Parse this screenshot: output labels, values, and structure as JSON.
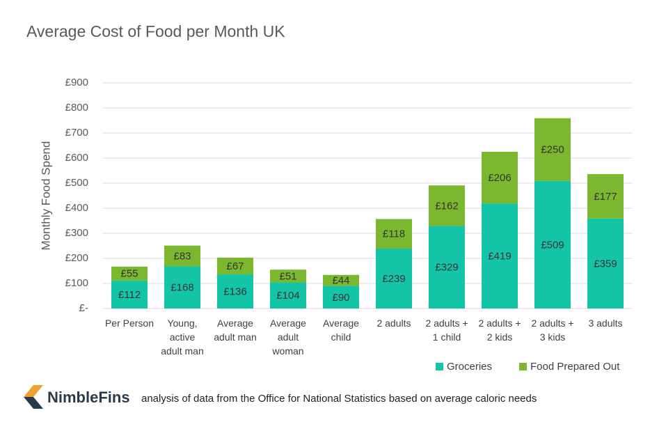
{
  "chart_data": {
    "type": "stacked-bar",
    "title": "Average Cost of Food per Month UK",
    "y_label": "Monthly Food Spend",
    "categories": [
      [
        "Per Person"
      ],
      [
        "Young,",
        "active",
        "adult man"
      ],
      [
        "Average",
        "adult man"
      ],
      [
        "Average",
        "adult",
        "woman"
      ],
      [
        "Average",
        "child"
      ],
      [
        "2 adults"
      ],
      [
        "2 adults +",
        "1 child"
      ],
      [
        "2 adults +",
        "2 kids"
      ],
      [
        "2 adults +",
        "3 kids"
      ],
      [
        "3 adults"
      ]
    ],
    "series": [
      {
        "name": "Groceries",
        "color": "#13c4a6",
        "values": [
          112,
          168,
          136,
          104,
          90,
          239,
          329,
          419,
          509,
          359
        ],
        "value_labels": [
          "£112",
          "£168",
          "£136",
          "£104",
          "£90",
          "£239",
          "£329",
          "£419",
          "£509",
          "£359"
        ]
      },
      {
        "name": "Food Prepared Out",
        "color": "#7cb82f",
        "values": [
          55,
          83,
          67,
          51,
          44,
          118,
          162,
          206,
          250,
          177
        ],
        "value_labels": [
          "£55",
          "£83",
          "£67",
          "£51",
          "£44",
          "£118",
          "£162",
          "£206",
          "£250",
          "£177"
        ]
      }
    ],
    "ylim": [
      0,
      900
    ],
    "yticks": [
      {
        "value": 0,
        "label": "£-"
      },
      {
        "value": 100,
        "label": "£100"
      },
      {
        "value": 200,
        "label": "£200"
      },
      {
        "value": 300,
        "label": "£300"
      },
      {
        "value": 400,
        "label": "£400"
      },
      {
        "value": 500,
        "label": "£500"
      },
      {
        "value": 600,
        "label": "£600"
      },
      {
        "value": 700,
        "label": "£700"
      },
      {
        "value": 800,
        "label": "£800"
      },
      {
        "value": 900,
        "label": "£900"
      }
    ],
    "grid": true,
    "legend": "bottom-right"
  },
  "footer": {
    "brand": "NimbleFins",
    "source": "analysis of data from the Office for National Statistics based on average caloric needs"
  }
}
